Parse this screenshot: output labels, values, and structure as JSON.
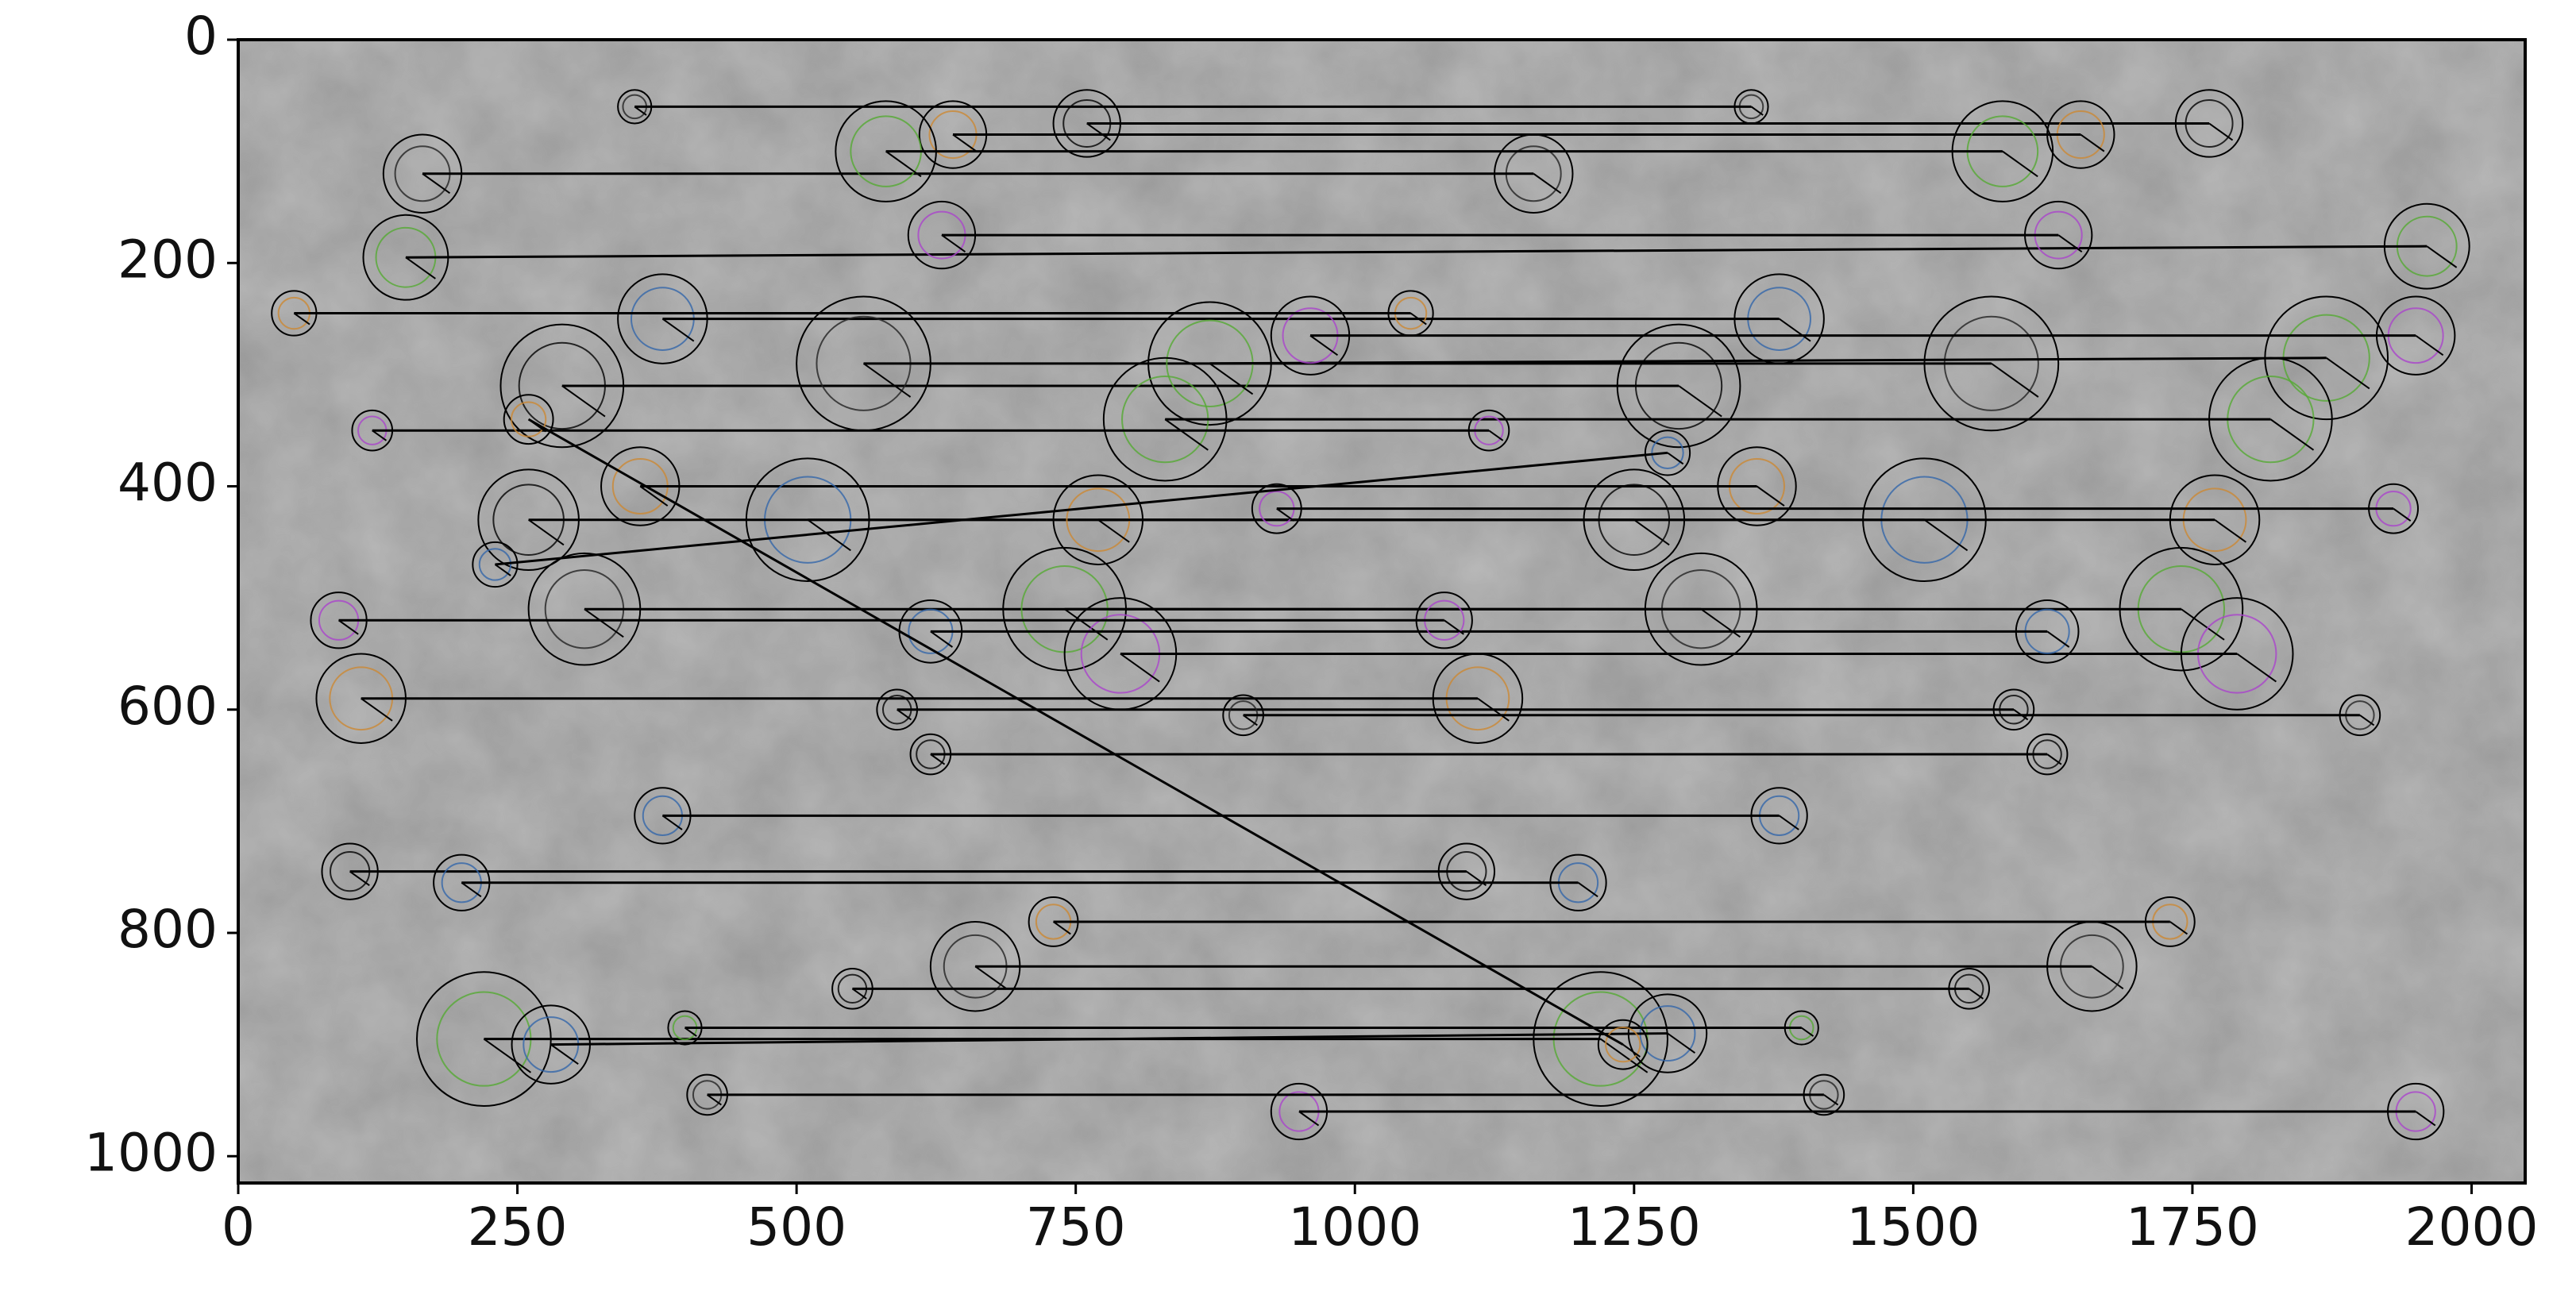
{
  "chart_data": {
    "type": "matches",
    "xlim": [
      0,
      2048
    ],
    "ylim": [
      1024,
      0
    ],
    "xticks": [
      0,
      250,
      500,
      750,
      1000,
      1250,
      1500,
      1750,
      2000
    ],
    "yticks": [
      0,
      200,
      400,
      600,
      800,
      1000
    ],
    "matches": {
      "x1": [
        760,
        165,
        150,
        630,
        640,
        380,
        290,
        560,
        870,
        960,
        360,
        510,
        260,
        310,
        740,
        790,
        110,
        380,
        100,
        660,
        220,
        950,
        730,
        620,
        590,
        900,
        830,
        120,
        50,
        200,
        620,
        355,
        580,
        90,
        770,
        280,
        550,
        420,
        400,
        1930,
        260,
        230
      ],
      "y1": [
        75,
        120,
        195,
        175,
        85,
        250,
        310,
        290,
        290,
        265,
        400,
        430,
        430,
        510,
        510,
        550,
        590,
        695,
        745,
        830,
        895,
        960,
        790,
        530,
        600,
        605,
        340,
        350,
        245,
        755,
        640,
        60,
        100,
        520,
        430,
        900,
        850,
        945,
        885,
        420,
        340,
        470
      ],
      "x2": [
        1765,
        1160,
        1960,
        1630,
        1650,
        1380,
        1290,
        1570,
        1870,
        1950,
        1360,
        1510,
        1250,
        1310,
        1740,
        1790,
        1110,
        1380,
        1100,
        1660,
        1220,
        1950,
        1730,
        1620,
        1590,
        1900,
        1820,
        1120,
        1050,
        1200,
        1620,
        1355,
        1580,
        1080,
        1770,
        1280,
        1550,
        1420,
        1400,
        930,
        1240,
        1280
      ],
      "y2": [
        75,
        120,
        185,
        175,
        85,
        250,
        310,
        290,
        285,
        265,
        400,
        430,
        430,
        510,
        510,
        550,
        590,
        695,
        745,
        830,
        895,
        960,
        790,
        530,
        600,
        605,
        340,
        350,
        245,
        755,
        640,
        60,
        100,
        520,
        430,
        890,
        850,
        945,
        885,
        420,
        900,
        370
      ],
      "r": [
        30,
        35,
        38,
        30,
        30,
        40,
        55,
        60,
        55,
        35,
        35,
        55,
        45,
        50,
        55,
        50,
        40,
        25,
        25,
        40,
        60,
        25,
        22,
        28,
        18,
        18,
        55,
        18,
        20,
        25,
        18,
        15,
        45,
        25,
        40,
        35,
        18,
        18,
        15,
        22,
        22,
        20
      ]
    }
  }
}
